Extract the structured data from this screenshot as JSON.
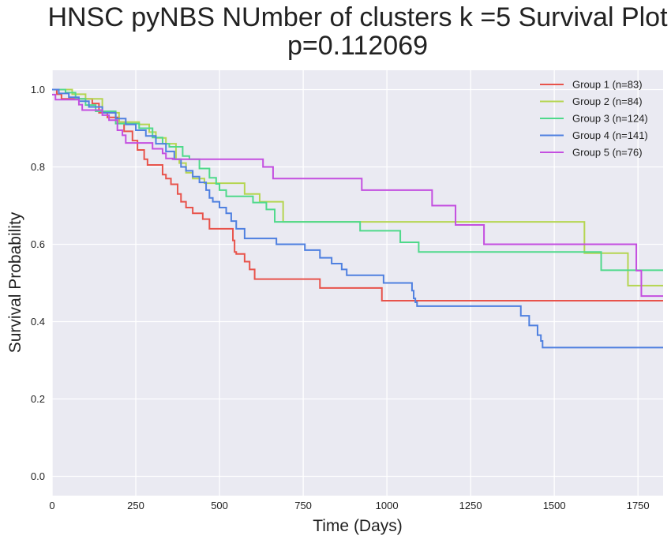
{
  "chart_data": {
    "type": "line",
    "title_line1": "HNSC pyNBS NUmber of clusters k =5 Survival Plot",
    "title_line2": "p=0.112069",
    "xlabel": "Time (Days)",
    "ylabel": "Survival Probability",
    "xlim": [
      0,
      1825
    ],
    "ylim": [
      -0.05,
      1.05
    ],
    "xticks": [
      0,
      250,
      500,
      750,
      1000,
      1250,
      1500,
      1750
    ],
    "xtick_labels": [
      "0",
      "250",
      "500",
      "750",
      "1000",
      "1250",
      "1500",
      "1750"
    ],
    "yticks": [
      0.0,
      0.2,
      0.4,
      0.6,
      0.8,
      1.0
    ],
    "ytick_labels": [
      "0.0",
      "0.2",
      "0.4",
      "0.6",
      "0.8",
      "1.0"
    ],
    "grid": true,
    "legend_position": "top-right",
    "series": [
      {
        "name": "Group 1 (n=83)",
        "color": "#e8534b",
        "x": [
          0,
          14,
          28,
          42,
          120,
          140,
          165,
          200,
          215,
          240,
          255,
          275,
          285,
          330,
          340,
          355,
          375,
          385,
          400,
          420,
          450,
          470,
          500,
          540,
          545,
          550,
          575,
          590,
          605,
          800,
          985,
          1825
        ],
        "y": [
          1.0,
          0.988,
          0.976,
          0.976,
          0.964,
          0.94,
          0.928,
          0.916,
          0.892,
          0.868,
          0.844,
          0.82,
          0.805,
          0.78,
          0.77,
          0.755,
          0.73,
          0.71,
          0.695,
          0.68,
          0.665,
          0.64,
          0.64,
          0.61,
          0.58,
          0.575,
          0.555,
          0.535,
          0.51,
          0.487,
          0.454,
          0.454
        ]
      },
      {
        "name": "Group 2 (n=84)",
        "color": "#b5d551",
        "x": [
          0,
          60,
          100,
          150,
          200,
          260,
          290,
          310,
          340,
          370,
          380,
          400,
          420,
          455,
          575,
          620,
          690,
          1590,
          1720,
          1825
        ],
        "y": [
          1.0,
          0.988,
          0.976,
          0.94,
          0.916,
          0.91,
          0.89,
          0.875,
          0.86,
          0.82,
          0.81,
          0.785,
          0.77,
          0.758,
          0.73,
          0.71,
          0.658,
          0.577,
          0.493,
          0.493
        ]
      },
      {
        "name": "Group 3 (n=124)",
        "color": "#4fd98b",
        "x": [
          0,
          40,
          70,
          100,
          130,
          190,
          240,
          260,
          300,
          330,
          350,
          390,
          410,
          440,
          470,
          490,
          500,
          520,
          600,
          640,
          665,
          920,
          1040,
          1095,
          1640,
          1825
        ],
        "y": [
          1.0,
          0.992,
          0.976,
          0.96,
          0.944,
          0.912,
          0.912,
          0.9,
          0.876,
          0.86,
          0.852,
          0.828,
          0.82,
          0.796,
          0.772,
          0.756,
          0.74,
          0.724,
          0.708,
          0.69,
          0.658,
          0.635,
          0.605,
          0.58,
          0.533,
          0.533
        ]
      },
      {
        "name": "Group 4 (n=141)",
        "color": "#4f80e0",
        "x": [
          0,
          20,
          50,
          80,
          110,
          150,
          190,
          220,
          250,
          280,
          310,
          340,
          365,
          385,
          400,
          420,
          440,
          460,
          470,
          480,
          500,
          520,
          535,
          550,
          575,
          670,
          755,
          800,
          835,
          865,
          880,
          990,
          1075,
          1080,
          1085,
          1090,
          1400,
          1425,
          1450,
          1460,
          1465,
          1825
        ],
        "y": [
          1.0,
          0.99,
          0.98,
          0.97,
          0.955,
          0.94,
          0.925,
          0.91,
          0.895,
          0.88,
          0.86,
          0.84,
          0.82,
          0.8,
          0.79,
          0.775,
          0.76,
          0.74,
          0.72,
          0.71,
          0.695,
          0.68,
          0.66,
          0.64,
          0.615,
          0.6,
          0.585,
          0.565,
          0.55,
          0.535,
          0.52,
          0.5,
          0.48,
          0.46,
          0.45,
          0.44,
          0.415,
          0.39,
          0.365,
          0.35,
          0.333,
          0.333
        ]
      },
      {
        "name": "Group 5 (n=76)",
        "color": "#c44fe0",
        "x": [
          0,
          10,
          80,
          90,
          150,
          170,
          195,
          210,
          220,
          250,
          300,
          330,
          340,
          360,
          630,
          660,
          925,
          1135,
          1205,
          1290,
          1745,
          1760,
          1825
        ],
        "y": [
          0.987,
          0.974,
          0.961,
          0.947,
          0.934,
          0.921,
          0.895,
          0.882,
          0.862,
          0.862,
          0.847,
          0.835,
          0.822,
          0.82,
          0.8,
          0.77,
          0.74,
          0.7,
          0.65,
          0.6,
          0.532,
          0.466,
          0.466
        ]
      }
    ]
  }
}
